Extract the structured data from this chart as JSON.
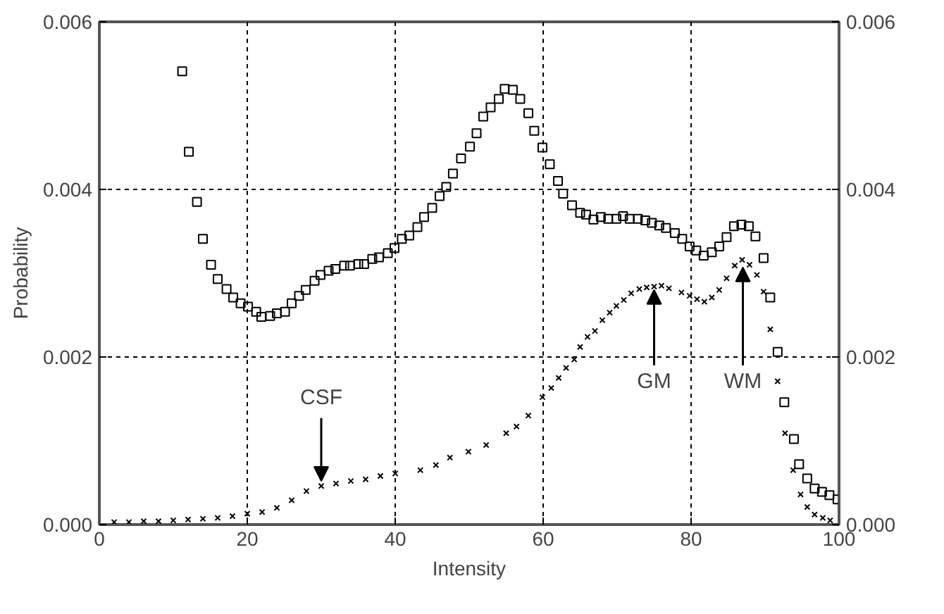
{
  "chart_data": {
    "type": "scatter",
    "xlabel": "Intensity",
    "ylabel": "Probability",
    "xlim": [
      0,
      100
    ],
    "xticks": [
      0,
      20,
      40,
      60,
      80,
      100
    ],
    "ylim": [
      0,
      0.006
    ],
    "yticks": [
      {
        "value": 0,
        "label": "0.000"
      },
      {
        "value": 0.002,
        "label": "0.002"
      },
      {
        "value": 0.004,
        "label": "0.004"
      },
      {
        "value": 0.006,
        "label": "0.006"
      }
    ],
    "y2lim": [
      0,
      0.006
    ],
    "y2ticks": [
      {
        "value": 0,
        "label": "0.000"
      },
      {
        "value": 0.002,
        "label": "0.002"
      },
      {
        "value": 0.004,
        "label": "0.004"
      },
      {
        "value": 0.006,
        "label": "0.006"
      }
    ],
    "grid": true,
    "series": [
      {
        "marker": "square",
        "color": "#000000",
        "x": [
          11.2,
          12.1,
          13.2,
          14.0,
          15.1,
          16.0,
          17.2,
          18.1,
          19.1,
          20.1,
          21.2,
          21.9,
          23.1,
          24.0,
          25.1,
          26.0,
          27.0,
          27.9,
          29.1,
          29.9,
          31.0,
          31.9,
          33.1,
          33.9,
          35.0,
          35.8,
          36.9,
          37.8,
          39.0,
          39.9,
          40.9,
          41.9,
          43.0,
          43.9,
          45.0,
          46.0,
          46.9,
          47.8,
          48.9,
          50.1,
          51.0,
          51.9,
          52.9,
          54.0,
          54.8,
          55.9,
          56.9,
          58.0,
          58.8,
          59.9,
          60.9,
          62.0,
          62.7,
          63.9,
          65.0,
          65.8,
          66.8,
          67.8,
          68.8,
          69.9,
          70.8,
          71.7,
          72.8,
          73.8,
          74.7,
          75.7,
          76.6,
          77.8,
          78.8,
          79.8,
          80.7,
          81.7,
          82.8,
          83.8,
          84.8,
          85.8,
          86.8,
          87.8,
          88.7,
          89.8,
          90.7,
          91.7,
          92.6,
          93.9,
          94.6,
          95.7,
          96.7,
          97.7,
          98.7,
          99.8
        ],
        "values": [
          0.00541,
          0.00445,
          0.00385,
          0.00341,
          0.0031,
          0.00293,
          0.00281,
          0.00271,
          0.00264,
          0.0026,
          0.00254,
          0.00248,
          0.00249,
          0.00252,
          0.00254,
          0.00264,
          0.00273,
          0.0028,
          0.00291,
          0.00298,
          0.00303,
          0.00305,
          0.00309,
          0.00309,
          0.00311,
          0.00311,
          0.00317,
          0.00319,
          0.00324,
          0.0033,
          0.00341,
          0.00345,
          0.00355,
          0.00367,
          0.00378,
          0.00392,
          0.00403,
          0.00419,
          0.00437,
          0.00451,
          0.00467,
          0.00487,
          0.00498,
          0.00508,
          0.0052,
          0.00519,
          0.00508,
          0.00491,
          0.0047,
          0.0045,
          0.0043,
          0.0041,
          0.00395,
          0.00381,
          0.00372,
          0.0037,
          0.00364,
          0.00367,
          0.00365,
          0.00365,
          0.00368,
          0.00365,
          0.00365,
          0.00363,
          0.0036,
          0.00357,
          0.00354,
          0.00348,
          0.00341,
          0.00332,
          0.00327,
          0.00321,
          0.00325,
          0.00332,
          0.00343,
          0.00356,
          0.00358,
          0.00356,
          0.00344,
          0.00318,
          0.00271,
          0.00206,
          0.00146,
          0.00102,
          0.00072,
          0.00055,
          0.00043,
          0.00039,
          0.00035,
          0.0003
        ]
      },
      {
        "marker": "cross",
        "color": "#000000",
        "x": [
          2,
          4,
          6,
          8,
          10,
          12,
          14,
          16,
          18,
          20,
          22,
          24,
          26,
          28,
          30,
          32,
          34,
          36,
          38,
          40,
          43.4,
          45.5,
          47.4,
          49.9,
          52.3,
          55.0,
          56.4,
          58.0,
          59.9,
          61.1,
          62.1,
          63.1,
          64.2,
          65.0,
          66.0,
          67.0,
          68.0,
          69.0,
          69.9,
          70.9,
          71.9,
          73.0,
          74.0,
          75.0,
          76.0,
          77.0,
          78.7,
          79.8,
          80.8,
          81.8,
          82.8,
          83.8,
          84.8,
          85.9,
          86.9,
          87.9,
          88.9,
          89.8,
          90.7,
          91.7,
          92.7,
          93.8,
          94.8,
          95.7,
          96.7,
          97.8,
          98.8
        ],
        "values": [
          3e-05,
          3e-05,
          4e-05,
          4e-05,
          5e-05,
          6e-05,
          7e-05,
          8e-05,
          0.0001,
          0.00013,
          0.00015,
          0.0002,
          0.00029,
          0.0004,
          0.00046,
          0.00049,
          0.00052,
          0.00054,
          0.00058,
          0.00061,
          0.00065,
          0.00071,
          0.0008,
          0.00087,
          0.00095,
          0.00109,
          0.00117,
          0.0013,
          0.00152,
          0.00163,
          0.00175,
          0.00187,
          0.00197,
          0.00212,
          0.00224,
          0.00231,
          0.00244,
          0.00253,
          0.00261,
          0.00268,
          0.00276,
          0.00281,
          0.00283,
          0.00284,
          0.00285,
          0.00282,
          0.00277,
          0.00273,
          0.00269,
          0.00266,
          0.00271,
          0.0028,
          0.00294,
          0.00309,
          0.00316,
          0.0031,
          0.00298,
          0.00278,
          0.00233,
          0.00171,
          0.00109,
          0.00065,
          0.00036,
          0.00021,
          0.00012,
          8e-05,
          5e-05
        ]
      }
    ],
    "annotations": [
      {
        "text": "CSF",
        "x": 30,
        "y": 0.00047
      },
      {
        "text": "GM",
        "x": 75,
        "y": 0.00285
      },
      {
        "text": "WM",
        "x": 87,
        "y": 0.00312
      }
    ]
  }
}
